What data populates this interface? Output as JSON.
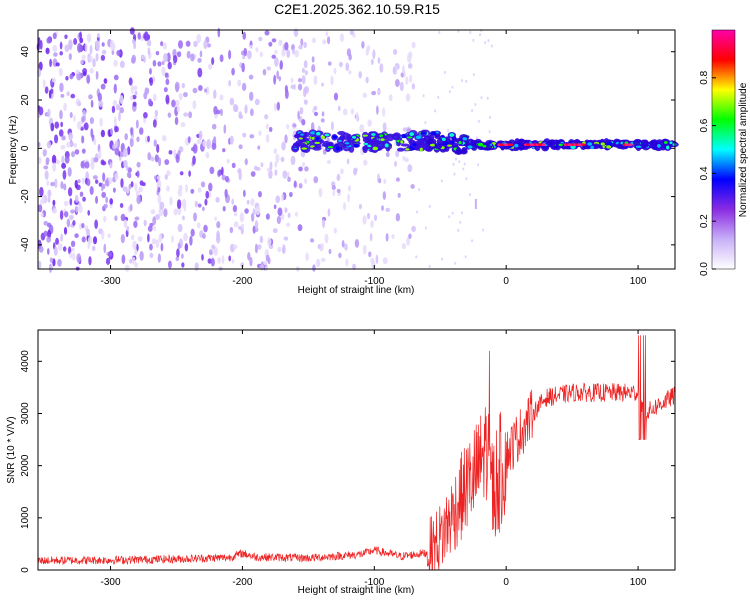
{
  "figure_title": "C2E1.2025.362.10.59.R15",
  "colors": {
    "snr_line": "#ee2222",
    "spec_dots": "#6a1ef0",
    "axis": "#000000"
  },
  "chart_data": [
    {
      "type": "heatmap",
      "name": "spectrogram",
      "xlabel": "Height of straight line (km)",
      "ylabel": "Frequency (Hz)",
      "xlim": [
        -355,
        128
      ],
      "ylim": [
        -50,
        49
      ],
      "x_ticks": [
        -300,
        -200,
        -100,
        0,
        100
      ],
      "x_tick_labels": [
        "-300",
        "-200",
        "-100",
        "0",
        "100"
      ],
      "y_ticks": [
        -40,
        -20,
        0,
        20,
        40
      ],
      "y_tick_labels": [
        "-40",
        "-20",
        "0",
        "20",
        "40"
      ],
      "colorbar": {
        "label": "Normalized spectral amplitude",
        "range": [
          0.0,
          1.0
        ],
        "ticks": [
          0.0,
          0.2,
          0.4,
          0.6,
          0.8
        ],
        "tick_labels": [
          "0.0",
          "0.2",
          "0.4",
          "0.6",
          "0.8"
        ],
        "colormap": [
          "#ffffff",
          "#c8b0f8",
          "#8a2be2",
          "#0000ff",
          "#00ffff",
          "#00ff00",
          "#ffff00",
          "#ff0000",
          "#ff00aa"
        ]
      },
      "description_features": {
        "noise_region_x": [
          -355,
          -70
        ],
        "carrier_band_x": [
          -160,
          128
        ],
        "carrier_freq_hz": 1.5
      }
    },
    {
      "type": "line",
      "name": "snr",
      "xlabel": "Height of straight line (km)",
      "ylabel": "SNR (10 * V/V)",
      "xlim": [
        -355,
        128
      ],
      "ylim": [
        0,
        4600
      ],
      "x_ticks": [
        -300,
        -200,
        -100,
        0,
        100
      ],
      "x_tick_labels": [
        "-300",
        "-200",
        "-100",
        "0",
        "100"
      ],
      "y_ticks": [
        0,
        1000,
        2000,
        3000,
        4000
      ],
      "y_tick_labels": [
        "0",
        "1000",
        "2000",
        "3000",
        "4000"
      ],
      "series": [
        {
          "name": "SNR",
          "color": "#ee2222",
          "x": [
            -355,
            -300,
            -250,
            -210,
            -200,
            -190,
            -150,
            -110,
            -100,
            -80,
            -60,
            -50,
            -40,
            -30,
            -20,
            -15,
            -10,
            0,
            10,
            20,
            30,
            50,
            80,
            100,
            105,
            128
          ],
          "y": [
            180,
            190,
            210,
            240,
            320,
            250,
            230,
            300,
            380,
            260,
            330,
            600,
            1100,
            1600,
            2000,
            2400,
            1500,
            2200,
            2600,
            3000,
            3300,
            3400,
            3400,
            3400,
            3000,
            3350
          ]
        }
      ]
    }
  ]
}
